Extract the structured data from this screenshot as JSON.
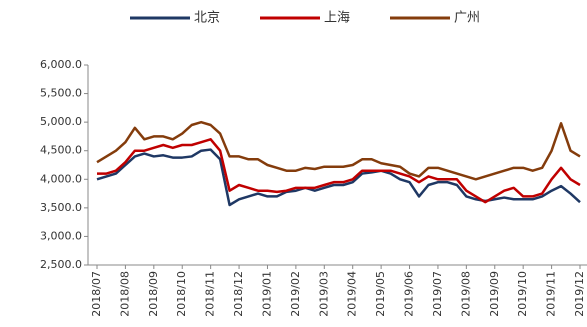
{
  "chart_data": {
    "type": "line",
    "categories": [
      "2018/07",
      null,
      null,
      "2018/08",
      null,
      null,
      "2018/09",
      null,
      null,
      "2018/10",
      null,
      null,
      "2018/11",
      null,
      null,
      "2018/12",
      null,
      null,
      "2019/01",
      null,
      null,
      "2019/02",
      null,
      null,
      "2019/03",
      null,
      null,
      "2019/04",
      null,
      null,
      "2019/05",
      null,
      null,
      "2019/06",
      null,
      null,
      "2019/07",
      null,
      null,
      "2019/08",
      null,
      null,
      "2019/09",
      null,
      null,
      "2019/10",
      null,
      null,
      "2019/11",
      null,
      null,
      "2019/12"
    ],
    "series": [
      {
        "name": "北京",
        "color": "#1f3864",
        "values": [
          4000,
          4050,
          4100,
          4250,
          4400,
          4450,
          4400,
          4420,
          4380,
          4380,
          4400,
          4500,
          4520,
          4350,
          3550,
          3650,
          3700,
          3750,
          3700,
          3700,
          3780,
          3800,
          3850,
          3800,
          3850,
          3900,
          3900,
          3950,
          4100,
          4120,
          4150,
          4100,
          4000,
          3950,
          3700,
          3900,
          3950,
          3950,
          3900,
          3700,
          3650,
          3620,
          3650,
          3680,
          3650,
          3650,
          3650,
          3700,
          3800,
          3880,
          3750,
          3600
        ]
      },
      {
        "name": "上海",
        "color": "#c00000",
        "values": [
          4100,
          4100,
          4150,
          4300,
          4500,
          4500,
          4550,
          4600,
          4550,
          4600,
          4600,
          4650,
          4700,
          4500,
          3800,
          3900,
          3850,
          3800,
          3800,
          3780,
          3800,
          3850,
          3850,
          3850,
          3900,
          3950,
          3950,
          4000,
          4150,
          4150,
          4150,
          4150,
          4100,
          4050,
          3950,
          4050,
          4000,
          4000,
          4000,
          3800,
          3700,
          3600,
          3700,
          3800,
          3850,
          3700,
          3700,
          3750,
          4000,
          4200,
          4000,
          3900
        ]
      },
      {
        "name": "广州",
        "color": "#843c0c",
        "values": [
          4300,
          4400,
          4500,
          4650,
          4900,
          4700,
          4750,
          4750,
          4700,
          4800,
          4950,
          5000,
          4950,
          4800,
          4400,
          4400,
          4350,
          4350,
          4250,
          4200,
          4150,
          4150,
          4200,
          4180,
          4220,
          4220,
          4220,
          4250,
          4350,
          4350,
          4280,
          4250,
          4220,
          4100,
          4050,
          4200,
          4200,
          4150,
          4100,
          4050,
          4000,
          4050,
          4100,
          4150,
          4200,
          4200,
          4150,
          4200,
          4500,
          4980,
          4500,
          4400
        ]
      }
    ],
    "ylim": [
      2500,
      6000
    ],
    "yticks": [
      {
        "value": 2500,
        "label": "2,500.0"
      },
      {
        "value": 3000,
        "label": "3,000.0"
      },
      {
        "value": 3500,
        "label": "3,500.0"
      },
      {
        "value": 4000,
        "label": "4,000.0"
      },
      {
        "value": 4500,
        "label": "4,500.0"
      },
      {
        "value": 5000,
        "label": "5,000.0"
      },
      {
        "value": 5500,
        "label": "5,500.0"
      },
      {
        "value": 6000,
        "label": "6,000.0"
      }
    ],
    "legend": "top"
  }
}
